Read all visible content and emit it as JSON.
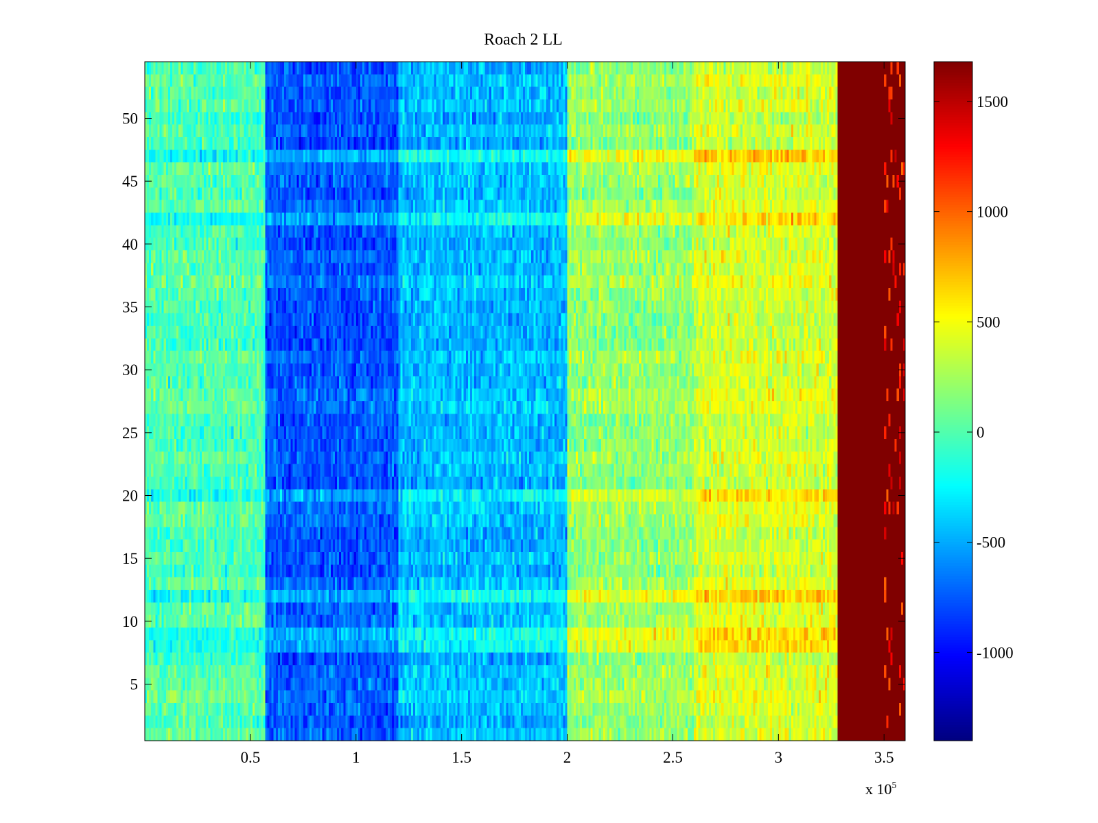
{
  "chart_data": {
    "type": "heatmap",
    "title": "Roach 2 LL",
    "xlabel": "",
    "ylabel": "",
    "x_multiplier": "x 10",
    "x_multiplier_exponent": "5",
    "xlim": [
      0,
      3.6
    ],
    "ylim": [
      0.5,
      54.5
    ],
    "x_ticks": [
      0.5,
      1,
      1.5,
      2,
      2.5,
      3,
      3.5
    ],
    "x_tick_labels": [
      "0.5",
      "1",
      "1.5",
      "2",
      "2.5",
      "3",
      "3.5"
    ],
    "y_ticks": [
      5,
      10,
      15,
      20,
      25,
      30,
      35,
      40,
      45,
      50
    ],
    "y_tick_labels": [
      "5",
      "10",
      "15",
      "20",
      "25",
      "30",
      "35",
      "40",
      "45",
      "50"
    ],
    "rows": 54,
    "colormap": "jet",
    "clim": [
      -1400,
      1680
    ],
    "colorbar_ticks": [
      1500,
      1000,
      500,
      0,
      -500,
      -1000
    ],
    "colorbar_tick_labels": [
      "1500",
      "1000",
      "500",
      "0",
      "-500",
      "-1000"
    ],
    "regions": [
      {
        "x_from": 0.0,
        "x_to": 0.57,
        "mean_value": 0
      },
      {
        "x_from": 0.57,
        "x_to": 1.2,
        "mean_value": -750
      },
      {
        "x_from": 1.2,
        "x_to": 2.0,
        "mean_value": -450
      },
      {
        "x_from": 2.0,
        "x_to": 2.6,
        "mean_value": 200
      },
      {
        "x_from": 2.6,
        "x_to": 3.28,
        "mean_value": 400
      },
      {
        "x_from": 3.28,
        "x_to": 3.6,
        "mean_value": 1680
      }
    ],
    "row_offsets": [
      {
        "row": 12,
        "offset": 300
      },
      {
        "row": 9,
        "offset": 220
      },
      {
        "row": 8,
        "offset": 150
      },
      {
        "row": 20,
        "offset": 150
      },
      {
        "row": 47,
        "offset": 250
      },
      {
        "row": 42,
        "offset": 180
      }
    ]
  }
}
